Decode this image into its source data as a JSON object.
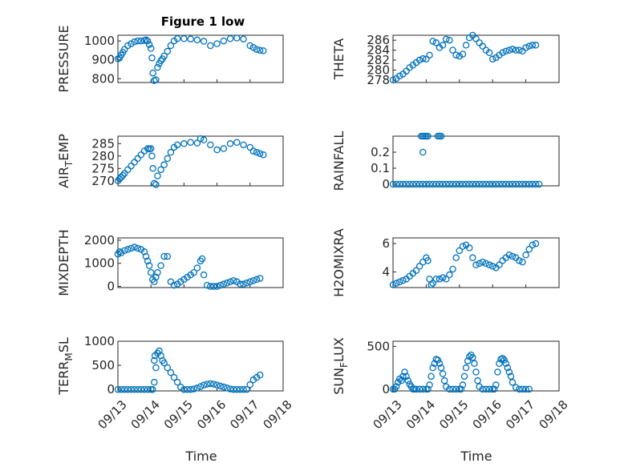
{
  "figure": {
    "title": "Figure 1 low",
    "marker_color": "#0072bd"
  },
  "chart_data": [
    {
      "id": "pressure",
      "type": "scatter",
      "ylabel": "PRESSURE",
      "x_unit": "days since 09/13",
      "xlim": [
        0,
        5
      ],
      "ylim": [
        780,
        1030
      ],
      "yticks": [
        800,
        900,
        1000
      ],
      "x": [
        0.0,
        0.05,
        0.1,
        0.15,
        0.2,
        0.3,
        0.4,
        0.5,
        0.6,
        0.7,
        0.8,
        0.85,
        0.9,
        0.95,
        1.0,
        1.03,
        1.06,
        1.1,
        1.15,
        1.2,
        1.25,
        1.3,
        1.35,
        1.4,
        1.5,
        1.6,
        1.7,
        1.8,
        2.0,
        2.2,
        2.4,
        2.6,
        2.8,
        3.0,
        3.2,
        3.4,
        3.6,
        3.8,
        4.0,
        4.1,
        4.2,
        4.3,
        4.4
      ],
      "y": [
        905,
        910,
        925,
        940,
        955,
        975,
        985,
        995,
        1000,
        1000,
        1002,
        1005,
        1000,
        980,
        960,
        910,
        830,
        790,
        795,
        860,
        880,
        895,
        905,
        920,
        945,
        975,
        1000,
        1012,
        1012,
        1010,
        1005,
        998,
        975,
        985,
        1000,
        1012,
        1015,
        1010,
        975,
        965,
        955,
        950,
        948
      ],
      "xtick_labels": [
        "09/13",
        "09/14",
        "09/15",
        "09/16",
        "09/17",
        "09/18"
      ]
    },
    {
      "id": "theta",
      "type": "scatter",
      "ylabel": "THETA",
      "xlim": [
        0,
        5
      ],
      "ylim": [
        277.5,
        287
      ],
      "yticks": [
        278,
        280,
        282,
        284,
        286
      ],
      "x": [
        0.0,
        0.1,
        0.2,
        0.3,
        0.4,
        0.5,
        0.6,
        0.7,
        0.8,
        0.9,
        1.0,
        1.1,
        1.2,
        1.3,
        1.4,
        1.5,
        1.6,
        1.7,
        1.8,
        1.9,
        2.0,
        2.1,
        2.2,
        2.3,
        2.4,
        2.5,
        2.6,
        2.7,
        2.8,
        2.9,
        3.0,
        3.1,
        3.2,
        3.3,
        3.4,
        3.5,
        3.6,
        3.7,
        3.8,
        3.9,
        4.0,
        4.1,
        4.2,
        4.3
      ],
      "y": [
        278.0,
        278.3,
        278.8,
        279.2,
        279.8,
        280.5,
        281.0,
        281.5,
        282.0,
        282.3,
        282.2,
        283.0,
        285.8,
        285.5,
        284.5,
        285.0,
        286.2,
        286.0,
        284.0,
        283.0,
        282.8,
        283.2,
        285.0,
        286.5,
        287.0,
        286.3,
        285.5,
        284.8,
        284.0,
        283.5,
        282.2,
        282.5,
        283.0,
        283.5,
        283.8,
        284.0,
        284.2,
        284.0,
        284.0,
        283.8,
        284.5,
        284.8,
        285.0,
        285.0
      ]
    },
    {
      "id": "air_temp",
      "type": "scatter",
      "ylabel": "AIR_TEMP",
      "xlim": [
        0,
        5
      ],
      "ylim": [
        268,
        288
      ],
      "yticks": [
        270,
        275,
        280,
        285
      ],
      "x": [
        0.0,
        0.05,
        0.1,
        0.15,
        0.2,
        0.3,
        0.4,
        0.5,
        0.6,
        0.7,
        0.8,
        0.9,
        0.95,
        1.0,
        1.03,
        1.06,
        1.1,
        1.15,
        1.2,
        1.3,
        1.4,
        1.5,
        1.6,
        1.7,
        1.8,
        2.0,
        2.2,
        2.4,
        2.5,
        2.6,
        2.8,
        3.0,
        3.2,
        3.4,
        3.6,
        3.8,
        4.0,
        4.1,
        4.2,
        4.3,
        4.4
      ],
      "y": [
        270,
        270.8,
        271.5,
        272.2,
        273,
        274.5,
        276,
        277.5,
        279,
        280.5,
        282,
        283,
        282.8,
        283,
        280,
        275,
        269,
        268.5,
        272,
        274.5,
        276.5,
        279,
        281.5,
        283.5,
        284.5,
        285,
        285.5,
        285.2,
        287,
        286.5,
        284.5,
        282.5,
        283,
        285,
        285.5,
        284.5,
        283.5,
        282,
        281.5,
        281,
        280.5
      ]
    },
    {
      "id": "rainfall",
      "type": "scatter",
      "ylabel": "RAINFALL",
      "xlim": [
        0,
        5
      ],
      "ylim": [
        -0.01,
        0.3
      ],
      "yticks": [
        0,
        0.1,
        0.2
      ],
      "x": [
        0.0,
        0.1,
        0.2,
        0.3,
        0.4,
        0.5,
        0.6,
        0.7,
        0.8,
        0.9,
        1.0,
        1.1,
        1.2,
        1.3,
        1.4,
        1.5,
        1.6,
        1.7,
        1.8,
        1.9,
        2.0,
        2.1,
        2.2,
        2.3,
        2.4,
        2.5,
        2.6,
        2.7,
        2.8,
        2.9,
        3.0,
        3.1,
        3.2,
        3.3,
        3.4,
        3.5,
        3.6,
        3.7,
        3.8,
        3.9,
        4.0,
        4.1,
        4.2,
        4.3,
        4.4,
        0.85,
        0.9,
        0.95,
        1.0,
        1.05,
        1.35,
        1.4,
        1.45,
        0.9
      ],
      "y": [
        0,
        0,
        0,
        0,
        0,
        0,
        0,
        0,
        0,
        0,
        0,
        0,
        0,
        0,
        0,
        0,
        0,
        0,
        0,
        0,
        0,
        0,
        0,
        0,
        0,
        0,
        0,
        0,
        0,
        0,
        0,
        0,
        0,
        0,
        0,
        0,
        0,
        0,
        0,
        0,
        0,
        0,
        0,
        0,
        0,
        0.3,
        0.3,
        0.3,
        0.3,
        0.3,
        0.3,
        0.3,
        0.3,
        0.2
      ]
    },
    {
      "id": "mixdepth",
      "type": "scatter",
      "ylabel": "MIXDEPTH",
      "xlim": [
        0,
        5
      ],
      "ylim": [
        -50,
        2100
      ],
      "yticks": [
        0,
        1000,
        2000
      ],
      "x": [
        0.0,
        0.05,
        0.1,
        0.2,
        0.3,
        0.4,
        0.5,
        0.6,
        0.7,
        0.8,
        0.85,
        0.9,
        0.95,
        1.0,
        1.05,
        1.1,
        1.15,
        1.2,
        1.3,
        1.4,
        1.5,
        1.6,
        1.7,
        1.8,
        1.9,
        2.0,
        2.1,
        2.2,
        2.3,
        2.4,
        2.5,
        2.55,
        2.6,
        2.7,
        2.8,
        2.9,
        3.0,
        3.1,
        3.2,
        3.3,
        3.4,
        3.5,
        3.6,
        3.7,
        3.8,
        3.9,
        4.0,
        4.1,
        4.2,
        4.3
      ],
      "y": [
        1400,
        1500,
        1450,
        1550,
        1600,
        1650,
        1700,
        1650,
        1600,
        1500,
        1300,
        1100,
        900,
        600,
        300,
        200,
        400,
        600,
        900,
        1300,
        1300,
        200,
        50,
        100,
        200,
        300,
        400,
        500,
        600,
        800,
        1100,
        1200,
        500,
        50,
        0,
        0,
        0,
        50,
        100,
        150,
        200,
        250,
        200,
        100,
        100,
        150,
        200,
        250,
        300,
        350
      ]
    },
    {
      "id": "h2omixra",
      "type": "scatter",
      "ylabel": "H2OMIXRA",
      "xlim": [
        0,
        5
      ],
      "ylim": [
        2.9,
        6.4
      ],
      "yticks": [
        4,
        6
      ],
      "x": [
        0.0,
        0.1,
        0.2,
        0.3,
        0.4,
        0.5,
        0.6,
        0.7,
        0.8,
        0.9,
        1.0,
        1.05,
        1.1,
        1.15,
        1.2,
        1.3,
        1.4,
        1.5,
        1.6,
        1.7,
        1.8,
        1.9,
        2.0,
        2.1,
        2.2,
        2.3,
        2.4,
        2.5,
        2.6,
        2.7,
        2.8,
        2.9,
        3.0,
        3.1,
        3.2,
        3.3,
        3.4,
        3.5,
        3.6,
        3.7,
        3.8,
        3.9,
        4.0,
        4.1,
        4.2,
        4.3
      ],
      "y": [
        3.1,
        3.2,
        3.3,
        3.4,
        3.5,
        3.7,
        3.9,
        4.1,
        4.4,
        4.7,
        5.0,
        4.8,
        3.5,
        3.1,
        3.2,
        3.5,
        3.5,
        3.6,
        3.5,
        3.8,
        4.2,
        5.0,
        5.5,
        5.8,
        5.9,
        5.7,
        5.0,
        4.5,
        4.6,
        4.7,
        4.6,
        4.5,
        4.4,
        4.3,
        4.5,
        4.8,
        5.0,
        5.2,
        5.1,
        5.0,
        4.8,
        4.7,
        5.2,
        5.6,
        5.9,
        6.0
      ]
    },
    {
      "id": "terr_msl",
      "type": "scatter",
      "ylabel": "TERR_MSL",
      "xlim": [
        0,
        5
      ],
      "ylim": [
        -30,
        1000
      ],
      "yticks": [
        0,
        500,
        1000
      ],
      "x": [
        0.0,
        0.1,
        0.2,
        0.3,
        0.4,
        0.5,
        0.6,
        0.7,
        0.8,
        0.9,
        1.0,
        1.05,
        1.1,
        1.15,
        1.2,
        1.25,
        1.3,
        1.35,
        1.4,
        1.5,
        1.6,
        1.7,
        1.8,
        1.9,
        2.0,
        2.1,
        2.2,
        2.3,
        2.4,
        2.5,
        2.6,
        2.7,
        2.8,
        2.9,
        3.0,
        3.1,
        3.2,
        3.3,
        3.4,
        3.5,
        3.6,
        3.7,
        3.8,
        3.9,
        4.0,
        4.1,
        4.2,
        4.3,
        1.1,
        1.12
      ],
      "y": [
        0,
        0,
        0,
        0,
        0,
        0,
        0,
        0,
        0,
        0,
        0,
        0,
        150,
        450,
        750,
        800,
        700,
        600,
        550,
        450,
        350,
        250,
        150,
        50,
        0,
        0,
        0,
        10,
        30,
        60,
        90,
        110,
        120,
        110,
        90,
        70,
        50,
        30,
        10,
        0,
        0,
        0,
        0,
        0,
        100,
        200,
        250,
        300,
        600,
        700
      ]
    },
    {
      "id": "sun_flux",
      "type": "scatter",
      "ylabel": "SUN_FLUX",
      "xlim": [
        0,
        5
      ],
      "ylim": [
        -20,
        560
      ],
      "yticks": [
        0,
        500
      ],
      "x": [
        0.0,
        0.05,
        0.1,
        0.15,
        0.2,
        0.25,
        0.3,
        0.35,
        0.4,
        0.45,
        0.5,
        0.55,
        0.6,
        0.65,
        0.7,
        0.8,
        0.9,
        1.0,
        1.05,
        1.1,
        1.15,
        1.2,
        1.25,
        1.3,
        1.35,
        1.4,
        1.45,
        1.5,
        1.55,
        1.6,
        1.7,
        1.8,
        1.9,
        2.0,
        2.05,
        2.1,
        2.15,
        2.2,
        2.25,
        2.3,
        2.35,
        2.4,
        2.45,
        2.5,
        2.55,
        2.6,
        2.7,
        2.8,
        2.9,
        3.0,
        3.05,
        3.1,
        3.15,
        3.2,
        3.25,
        3.3,
        3.35,
        3.4,
        3.45,
        3.5,
        3.55,
        3.6,
        3.7,
        3.8,
        3.9,
        4.0,
        4.1
      ],
      "y": [
        0,
        0,
        30,
        80,
        120,
        100,
        150,
        200,
        150,
        100,
        60,
        30,
        0,
        0,
        0,
        0,
        0,
        0,
        0,
        50,
        150,
        250,
        300,
        350,
        340,
        300,
        250,
        180,
        100,
        30,
        0,
        0,
        0,
        0,
        0,
        50,
        150,
        250,
        330,
        380,
        400,
        370,
        300,
        200,
        100,
        30,
        0,
        0,
        0,
        0,
        0,
        50,
        200,
        300,
        350,
        360,
        340,
        300,
        250,
        200,
        150,
        80,
        20,
        0,
        0,
        0,
        0
      ]
    }
  ],
  "xlabels": [
    "Time",
    "Time"
  ]
}
